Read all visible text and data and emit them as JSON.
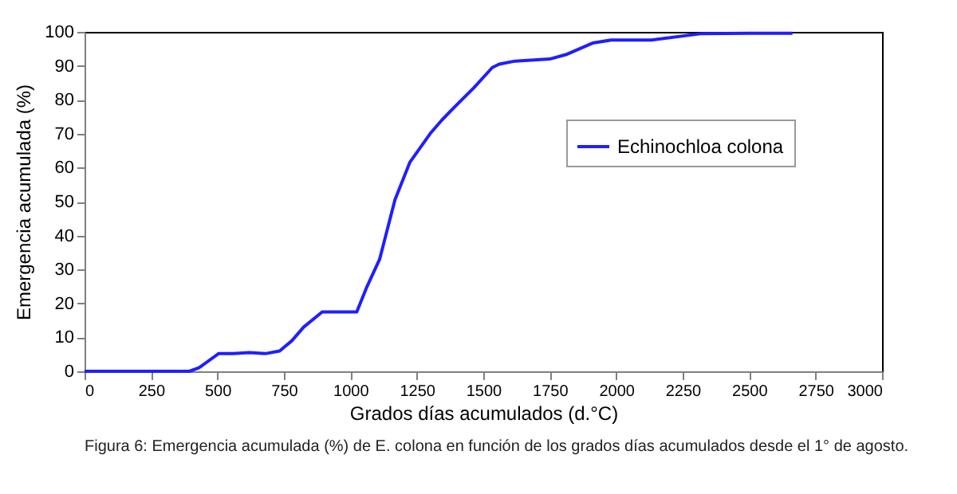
{
  "chart_data": {
    "type": "line",
    "xlabel": "Grados días acumulados (d.°C)",
    "ylabel": "Emergencia acumulada (%)",
    "annotations": [
      "Figura 6: Emergencia acumulada (%) de E. colona en función de los grados días acumulados desde el 1° de agosto."
    ],
    "x": [
      0,
      200,
      394,
      430,
      504,
      560,
      620,
      680,
      734,
      780,
      824,
      894,
      960,
      1024,
      1060,
      1110,
      1168,
      1224,
      1300,
      1344,
      1394,
      1464,
      1534,
      1560,
      1620,
      1750,
      1811,
      1911,
      1981,
      2132,
      2322,
      2500,
      2663
    ],
    "series": [
      {
        "name": "Echinochloa colona",
        "color": "#1f1fff",
        "values": [
          0,
          0,
          0,
          1,
          5.2,
          5.2,
          5.5,
          5.2,
          6,
          9,
          13,
          17.5,
          17.5,
          17.5,
          24.5,
          33,
          50.6,
          61.6,
          70,
          74,
          78,
          83.5,
          89.5,
          90.5,
          91.4,
          92,
          93.3,
          96.7,
          97.6,
          97.6,
          99.5,
          99.6,
          99.6
        ]
      }
    ],
    "xlim": [
      0,
      3000
    ],
    "xticks": [
      0,
      250,
      500,
      750,
      1000,
      1250,
      1500,
      1750,
      2000,
      2250,
      2500,
      2750,
      3000
    ],
    "ylim": [
      0,
      100
    ],
    "yticks": [
      0,
      10,
      20,
      30,
      40,
      50,
      60,
      70,
      80,
      90,
      100
    ],
    "grid": false,
    "legend": "top right",
    "marker": "none",
    "line_style": "solid"
  }
}
